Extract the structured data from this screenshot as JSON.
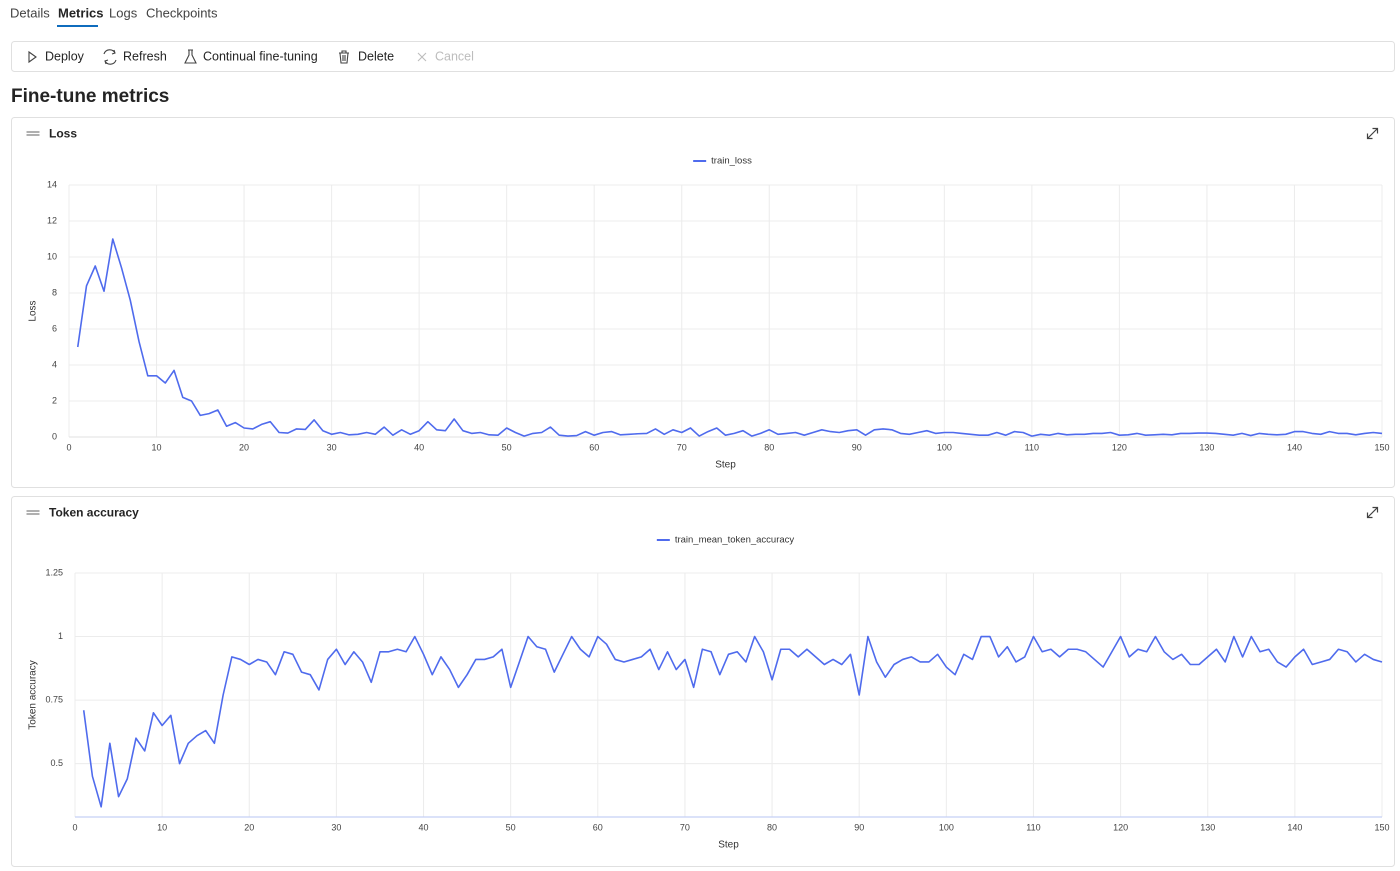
{
  "tabs": [
    "Details",
    "Metrics",
    "Logs",
    "Checkpoints"
  ],
  "toolbar": [
    "Deploy",
    "Refresh",
    "Continual fine-tuning",
    "Delete",
    "Cancel"
  ],
  "heading": "Fine-tune metrics",
  "chart_data": [
    {
      "type": "line",
      "title": "Loss",
      "xlabel": "Step",
      "ylabel": "Loss",
      "x": [
        1,
        2,
        3,
        4,
        5,
        6,
        7,
        8,
        9,
        10,
        11,
        12,
        13,
        14,
        15,
        16,
        17,
        18,
        19,
        20,
        21,
        22,
        23,
        24,
        25,
        26,
        27,
        28,
        29,
        30,
        31,
        32,
        33,
        34,
        35,
        36,
        37,
        38,
        39,
        40,
        41,
        42,
        43,
        44,
        45,
        46,
        47,
        48,
        49,
        50,
        51,
        52,
        53,
        54,
        55,
        56,
        57,
        58,
        59,
        60,
        61,
        62,
        63,
        64,
        65,
        66,
        67,
        68,
        69,
        70,
        71,
        72,
        73,
        74,
        75,
        76,
        77,
        78,
        79,
        80,
        81,
        82,
        83,
        84,
        85,
        86,
        87,
        88,
        89,
        90,
        91,
        92,
        93,
        94,
        95,
        96,
        97,
        98,
        99,
        100,
        101,
        102,
        103,
        104,
        105,
        106,
        107,
        108,
        109,
        110,
        111,
        112,
        113,
        114,
        115,
        116,
        117,
        118,
        119,
        120,
        121,
        122,
        123,
        124,
        125,
        126,
        127,
        128,
        129,
        130,
        131,
        132,
        133,
        134,
        135,
        136,
        137,
        138,
        139,
        140,
        141,
        142,
        143,
        144,
        145,
        146,
        147,
        148,
        149,
        150
      ],
      "series": [
        {
          "name": "train_loss",
          "color": "#4f6bed",
          "values": [
            5.0,
            8.4,
            9.5,
            8.1,
            11.0,
            9.4,
            7.6,
            5.3,
            3.4,
            3.4,
            3.0,
            3.7,
            2.2,
            2.0,
            1.2,
            1.3,
            1.5,
            0.6,
            0.8,
            0.5,
            0.45,
            0.7,
            0.85,
            0.25,
            0.22,
            0.45,
            0.42,
            0.95,
            0.35,
            0.15,
            0.25,
            0.12,
            0.15,
            0.25,
            0.15,
            0.55,
            0.1,
            0.4,
            0.15,
            0.35,
            0.85,
            0.4,
            0.35,
            1.0,
            0.35,
            0.2,
            0.25,
            0.12,
            0.1,
            0.5,
            0.25,
            0.05,
            0.2,
            0.25,
            0.55,
            0.1,
            0.05,
            0.08,
            0.3,
            0.1,
            0.25,
            0.3,
            0.12,
            0.15,
            0.18,
            0.2,
            0.45,
            0.15,
            0.4,
            0.25,
            0.5,
            0.05,
            0.3,
            0.5,
            0.1,
            0.2,
            0.35,
            0.05,
            0.2,
            0.4,
            0.15,
            0.2,
            0.25,
            0.1,
            0.25,
            0.4,
            0.3,
            0.25,
            0.35,
            0.4,
            0.1,
            0.4,
            0.45,
            0.4,
            0.2,
            0.15,
            0.25,
            0.35,
            0.2,
            0.25,
            0.25,
            0.2,
            0.15,
            0.1,
            0.1,
            0.25,
            0.1,
            0.3,
            0.25,
            0.05,
            0.15,
            0.1,
            0.2,
            0.12,
            0.15,
            0.15,
            0.2,
            0.2,
            0.25,
            0.1,
            0.12,
            0.2,
            0.1,
            0.12,
            0.15,
            0.12,
            0.2,
            0.2,
            0.22,
            0.22,
            0.2,
            0.15,
            0.1,
            0.2,
            0.08,
            0.2,
            0.15,
            0.12,
            0.15,
            0.3,
            0.3,
            0.2,
            0.15,
            0.3,
            0.2,
            0.2,
            0.12,
            0.2,
            0.25,
            0.2
          ]
        }
      ],
      "xlim": [
        0,
        150
      ],
      "xticks": [
        0,
        10,
        20,
        30,
        40,
        50,
        60,
        70,
        80,
        90,
        100,
        110,
        120,
        130,
        140,
        150
      ],
      "ylim": [
        0,
        14
      ],
      "yticks": [
        0,
        2,
        4,
        6,
        8,
        10,
        12,
        14
      ],
      "grid": true,
      "legend": "top"
    },
    {
      "type": "line",
      "title": "Token accuracy",
      "xlabel": "Step",
      "ylabel": "Token accuracy",
      "x": [
        1,
        2,
        3,
        4,
        5,
        6,
        7,
        8,
        9,
        10,
        11,
        12,
        13,
        14,
        15,
        16,
        17,
        18,
        19,
        20,
        21,
        22,
        23,
        24,
        25,
        26,
        27,
        28,
        29,
        30,
        31,
        32,
        33,
        34,
        35,
        36,
        37,
        38,
        39,
        40,
        41,
        42,
        43,
        44,
        45,
        46,
        47,
        48,
        49,
        50,
        51,
        52,
        53,
        54,
        55,
        56,
        57,
        58,
        59,
        60,
        61,
        62,
        63,
        64,
        65,
        66,
        67,
        68,
        69,
        70,
        71,
        72,
        73,
        74,
        75,
        76,
        77,
        78,
        79,
        80,
        81,
        82,
        83,
        84,
        85,
        86,
        87,
        88,
        89,
        90,
        91,
        92,
        93,
        94,
        95,
        96,
        97,
        98,
        99,
        100,
        101,
        102,
        103,
        104,
        105,
        106,
        107,
        108,
        109,
        110,
        111,
        112,
        113,
        114,
        115,
        116,
        117,
        118,
        119,
        120,
        121,
        122,
        123,
        124,
        125,
        126,
        127,
        128,
        129,
        130,
        131,
        132,
        133,
        134,
        135,
        136,
        137,
        138,
        139,
        140,
        141,
        142,
        143,
        144,
        145,
        146,
        147,
        148,
        149,
        150
      ],
      "series": [
        {
          "name": "train_mean_token_accuracy",
          "color": "#4f6bed",
          "values": [
            0.71,
            0.45,
            0.33,
            0.58,
            0.37,
            0.44,
            0.6,
            0.55,
            0.7,
            0.65,
            0.69,
            0.5,
            0.58,
            0.61,
            0.63,
            0.58,
            0.77,
            0.92,
            0.91,
            0.89,
            0.91,
            0.9,
            0.85,
            0.94,
            0.93,
            0.86,
            0.85,
            0.79,
            0.91,
            0.95,
            0.89,
            0.94,
            0.9,
            0.82,
            0.94,
            0.94,
            0.95,
            0.94,
            1.0,
            0.93,
            0.85,
            0.92,
            0.87,
            0.8,
            0.85,
            0.91,
            0.91,
            0.92,
            0.95,
            0.8,
            0.9,
            1.0,
            0.96,
            0.95,
            0.86,
            0.93,
            1.0,
            0.95,
            0.92,
            1.0,
            0.97,
            0.91,
            0.9,
            0.91,
            0.92,
            0.95,
            0.87,
            0.94,
            0.87,
            0.91,
            0.8,
            0.95,
            0.94,
            0.85,
            0.93,
            0.94,
            0.9,
            1.0,
            0.94,
            0.83,
            0.95,
            0.95,
            0.92,
            0.95,
            0.92,
            0.89,
            0.91,
            0.89,
            0.93,
            0.77,
            1.0,
            0.9,
            0.84,
            0.89,
            0.91,
            0.92,
            0.9,
            0.9,
            0.93,
            0.88,
            0.85,
            0.93,
            0.91,
            1.0,
            1.0,
            0.92,
            0.96,
            0.9,
            0.92,
            1.0,
            0.94,
            0.95,
            0.92,
            0.95,
            0.95,
            0.94,
            0.91,
            0.88,
            0.94,
            1.0,
            0.92,
            0.95,
            0.94,
            1.0,
            0.94,
            0.91,
            0.93,
            0.89,
            0.89,
            0.92,
            0.95,
            0.9,
            1.0,
            0.92,
            1.0,
            0.94,
            0.95,
            0.9,
            0.88,
            0.92,
            0.95,
            0.89,
            0.9,
            0.91,
            0.95,
            0.94,
            0.9,
            0.93,
            0.91,
            0.9
          ]
        }
      ],
      "xlim": [
        0,
        150
      ],
      "xticks": [
        0,
        10,
        20,
        30,
        40,
        50,
        60,
        70,
        80,
        90,
        100,
        110,
        120,
        130,
        140,
        150
      ],
      "ylim": [
        0.29,
        1.25
      ],
      "yticks": [
        0.5,
        0.75,
        1,
        1.25
      ],
      "grid": true,
      "legend": "top"
    }
  ]
}
